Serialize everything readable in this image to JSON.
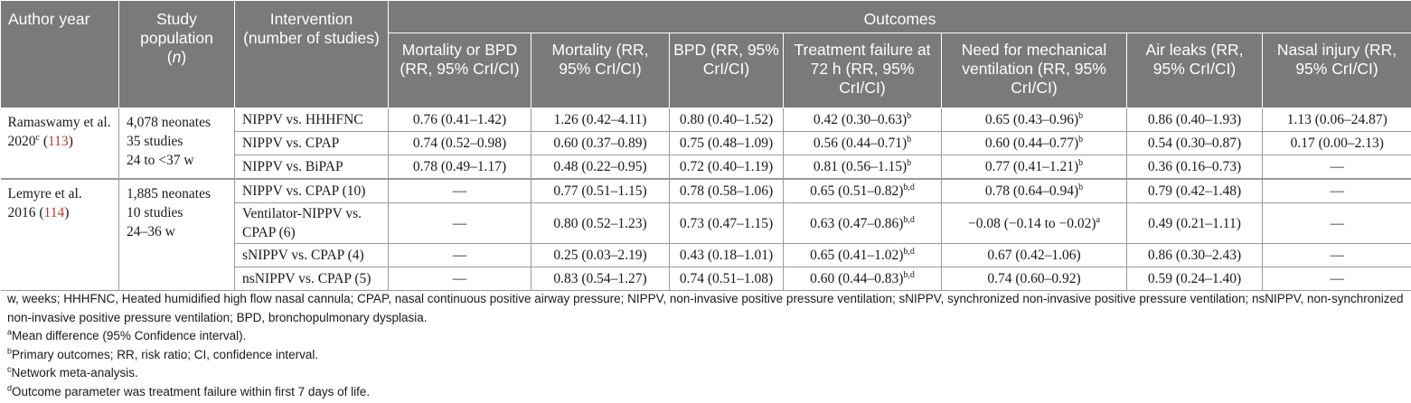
{
  "header": {
    "author_year": "Author year",
    "study_population": "Study population",
    "n": "n",
    "intervention": "Intervention (number of studies)",
    "outcomes": "Outcomes",
    "outcome_cols": [
      "Mortality or BPD (RR, 95% CrI/CI)",
      "Mortality (RR, 95% CrI/CI)",
      "BPD (RR, 95% CrI/CI)",
      "Treatment failure at 72 h (RR, 95% CrI/CI)",
      "Need for mechanical ventilation (RR, 95% CrI/CI)",
      "Air leaks (RR, 95% CrI/CI)",
      "Nasal injury (RR, 95% CrI/CI)"
    ]
  },
  "studies": [
    {
      "author": "Ramaswamy et al. 2020",
      "author_sup": "c",
      "ref": "113",
      "population": [
        "4,078 neonates",
        "35 studies",
        "24 to <37 w"
      ],
      "rows": [
        {
          "intervention": "NIPPV vs. HHHFNC",
          "c1": "0.76 (0.41–1.42)",
          "c2": "1.26 (0.42–4.11)",
          "c3": "0.80 (0.40–1.52)",
          "c4": "0.42 (0.30–0.63)",
          "c4_sup": "b",
          "c5": "0.65 (0.43–0.96)",
          "c5_sup": "b",
          "c6": "0.86 (0.40–1.93)",
          "c7": "1.13 (0.06–24.87)"
        },
        {
          "intervention": "NIPPV vs. CPAP",
          "c1": "0.74 (0.52–0.98)",
          "c2": "0.60 (0.37–0.89)",
          "c3": "0.75 (0.48–1.09)",
          "c4": "0.56 (0.44–0.71)",
          "c4_sup": "b",
          "c5": "0.60 (0.44–0.77)",
          "c5_sup": "b",
          "c6": "0.54 (0.30–0.87)",
          "c7": "0.17 (0.00–2.13)"
        },
        {
          "intervention": "NIPPV vs. BiPAP",
          "c1": "0.78 (0.49–1.17)",
          "c2": "0.48 (0.22–0.95)",
          "c3": "0.72 (0.40–1.19)",
          "c4": "0.81 (0.56–1.15)",
          "c4_sup": "b",
          "c5": "0.77 (0.41–1.21)",
          "c5_sup": "b",
          "c6": "0.36 (0.16–0.73)",
          "c7": "—"
        }
      ]
    },
    {
      "author": "Lemyre et al. 2016",
      "ref": "114",
      "population": [
        "1,885 neonates",
        "10 studies",
        "24–36 w"
      ],
      "rows": [
        {
          "intervention": "NIPPV vs. CPAP (10)",
          "c1": "—",
          "c2": "0.77 (0.51–1.15)",
          "c3": "0.78 (0.58–1.06)",
          "c4": "0.65 (0.51–0.82)",
          "c4_sup": "b,d",
          "c5": "0.78 (0.64–0.94)",
          "c5_sup": "b",
          "c6": "0.79 (0.42–1.48)",
          "c7": "—"
        },
        {
          "intervention": "Ventilator-NIPPV vs. CPAP (6)",
          "c1": "—",
          "c2": "0.80 (0.52–1.23)",
          "c3": "0.73 (0.47–1.15)",
          "c4": "0.63 (0.47–0.86)",
          "c4_sup": "b,d",
          "c5": "−0.08 (−0.14 to −0.02)",
          "c5_sup": "a",
          "c6": "0.49 (0.21–1.11)",
          "c7": "—"
        },
        {
          "intervention": "sNIPPV vs. CPAP (4)",
          "c1": "—",
          "c2": "0.25 (0.03–2.19)",
          "c3": "0.43 (0.18–1.01)",
          "c4": "0.65 (0.41–1.02)",
          "c4_sup": "b,d",
          "c5": "0.67 (0.42–1.06)",
          "c6": "0.86 (0.30–2.43)",
          "c7": "—"
        },
        {
          "intervention": "nsNIPPV vs. CPAP (5)",
          "c1": "—",
          "c2": "0.83 (0.54–1.27)",
          "c3": "0.74 (0.51–1.08)",
          "c4": "0.60 (0.44–0.83)",
          "c4_sup": "b,d",
          "c5": "0.74 (0.60–0.92)",
          "c6": "0.59 (0.24–1.40)",
          "c7": "—"
        }
      ]
    }
  ],
  "notes": {
    "abbreviations": "w, weeks; HHHFNC, Heated humidified high flow nasal cannula; CPAP, nasal continuous positive airway pressure; NIPPV, non-invasive positive pressure ventilation; sNIPPV, synchronized non-invasive positive pressure ventilation; nsNIPPV, non-synchronized non-invasive positive pressure ventilation; BPD, bronchopulmonary dysplasia.",
    "footnotes": [
      {
        "mark": "a",
        "text": "Mean difference (95% Confidence interval)."
      },
      {
        "mark": "b",
        "text": "Primary outcomes; RR, risk ratio; CI, confidence interval."
      },
      {
        "mark": "c",
        "text": "Network meta-analysis."
      },
      {
        "mark": "d",
        "text": "Outcome parameter was treatment failure within first 7 days of life."
      }
    ]
  },
  "colors": {
    "header_bg": "#7a7a7a",
    "ref_link": "#c0392b"
  }
}
